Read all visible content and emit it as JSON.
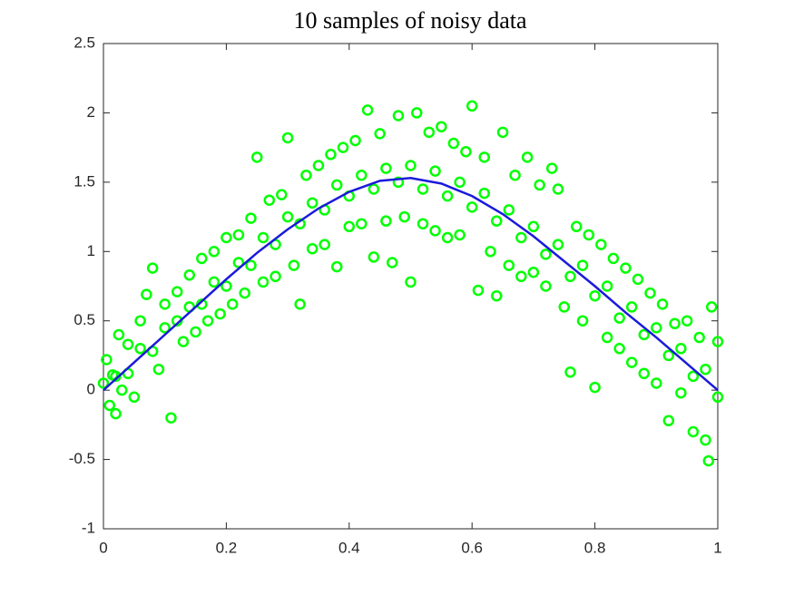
{
  "chart_data": {
    "type": "scatter",
    "title": "10 samples of noisy data",
    "xlim": [
      0,
      1
    ],
    "xticks": [
      0,
      0.2,
      0.4,
      0.6,
      0.8,
      1
    ],
    "ylim": [
      -1,
      2.5
    ],
    "yticks": [
      -1,
      -0.5,
      0,
      0.5,
      1,
      1.5,
      2,
      2.5
    ],
    "grid": false,
    "series": [
      {
        "type": "scatter",
        "color": "#00ff00",
        "x": [
          0.005,
          0.01,
          0.015,
          0.02,
          0.025,
          0.03,
          0.04,
          0.05,
          0.06,
          0.07,
          0.08,
          0.09,
          0.1,
          0.11,
          0.12,
          0.13,
          0.14,
          0.15,
          0.16,
          0.17,
          0.18,
          0.19,
          0.2,
          0.21,
          0.22,
          0.23,
          0.24,
          0.25,
          0.26,
          0.27,
          0.28,
          0.29,
          0.3,
          0.31,
          0.32,
          0.33,
          0.34,
          0.35,
          0.36,
          0.37,
          0.38,
          0.39,
          0.4,
          0.41,
          0.42,
          0.43,
          0.44,
          0.45,
          0.46,
          0.47,
          0.48,
          0.49,
          0.5,
          0.51,
          0.52,
          0.53,
          0.54,
          0.55,
          0.56,
          0.57,
          0.58,
          0.59,
          0.6,
          0.61,
          0.62,
          0.63,
          0.64,
          0.65,
          0.66,
          0.67,
          0.68,
          0.69,
          0.7,
          0.71,
          0.72,
          0.73,
          0.74,
          0.75,
          0.76,
          0.77,
          0.78,
          0.79,
          0.8,
          0.81,
          0.82,
          0.83,
          0.84,
          0.85,
          0.86,
          0.87,
          0.88,
          0.89,
          0.9,
          0.91,
          0.92,
          0.93,
          0.94,
          0.95,
          0.96,
          0.97,
          0.98,
          0.985,
          0.99,
          1.0,
          0.0,
          0.02,
          0.04,
          0.06,
          0.08,
          0.1,
          0.12,
          0.14,
          0.16,
          0.18,
          0.2,
          0.22,
          0.24,
          0.26,
          0.28,
          0.3,
          0.32,
          0.34,
          0.36,
          0.38,
          0.4,
          0.42,
          0.44,
          0.46,
          0.48,
          0.5,
          0.52,
          0.54,
          0.56,
          0.58,
          0.6,
          0.62,
          0.64,
          0.66,
          0.68,
          0.7,
          0.72,
          0.74,
          0.76,
          0.78,
          0.8,
          0.82,
          0.84,
          0.86,
          0.88,
          0.9,
          0.92,
          0.94,
          0.96,
          0.98,
          1.0
        ],
        "values": [
          0.22,
          -0.11,
          0.11,
          -0.17,
          0.4,
          0.0,
          0.33,
          -0.05,
          0.5,
          0.69,
          0.88,
          0.15,
          0.62,
          -0.2,
          0.71,
          0.35,
          0.83,
          0.42,
          0.95,
          0.5,
          1.0,
          0.55,
          1.1,
          0.62,
          1.12,
          0.7,
          1.24,
          1.68,
          0.78,
          1.37,
          0.82,
          1.41,
          1.82,
          0.9,
          0.62,
          1.55,
          1.02,
          1.62,
          1.05,
          1.7,
          0.89,
          1.75,
          1.18,
          1.8,
          1.2,
          2.02,
          0.96,
          1.85,
          1.22,
          0.92,
          1.98,
          1.25,
          0.78,
          2.0,
          1.2,
          1.86,
          1.15,
          1.9,
          1.1,
          1.78,
          1.12,
          1.72,
          2.05,
          0.72,
          1.68,
          1.0,
          0.68,
          1.86,
          0.9,
          1.55,
          0.82,
          1.68,
          0.85,
          1.48,
          0.75,
          1.6,
          1.45,
          0.6,
          0.13,
          1.18,
          0.5,
          1.12,
          0.02,
          1.05,
          0.38,
          0.95,
          0.3,
          0.88,
          0.2,
          0.8,
          0.12,
          0.7,
          0.05,
          0.62,
          -0.22,
          0.48,
          -0.02,
          0.5,
          -0.3,
          0.38,
          -0.36,
          -0.51,
          0.6,
          0.35,
          0.05,
          0.1,
          0.12,
          0.3,
          0.28,
          0.45,
          0.5,
          0.6,
          0.62,
          0.78,
          0.75,
          0.92,
          0.9,
          1.1,
          1.05,
          1.25,
          1.2,
          1.35,
          1.3,
          1.48,
          1.4,
          1.55,
          1.45,
          1.6,
          1.5,
          1.62,
          1.45,
          1.58,
          1.4,
          1.5,
          1.32,
          1.42,
          1.22,
          1.3,
          1.1,
          1.18,
          0.98,
          1.05,
          0.82,
          0.9,
          0.68,
          0.75,
          0.52,
          0.6,
          0.4,
          0.45,
          0.25,
          0.3,
          0.1,
          0.15,
          -0.05
        ]
      },
      {
        "type": "line",
        "color": "#1a1adb",
        "x": [
          0,
          0.05,
          0.1,
          0.15,
          0.2,
          0.25,
          0.3,
          0.35,
          0.4,
          0.45,
          0.5,
          0.55,
          0.6,
          0.65,
          0.7,
          0.75,
          0.8,
          0.85,
          0.9,
          0.95,
          1
        ],
        "values": [
          0,
          0.2,
          0.4,
          0.6,
          0.8,
          0.99,
          1.16,
          1.31,
          1.43,
          1.51,
          1.53,
          1.49,
          1.4,
          1.27,
          1.11,
          0.93,
          0.75,
          0.56,
          0.38,
          0.19,
          0
        ]
      }
    ]
  }
}
